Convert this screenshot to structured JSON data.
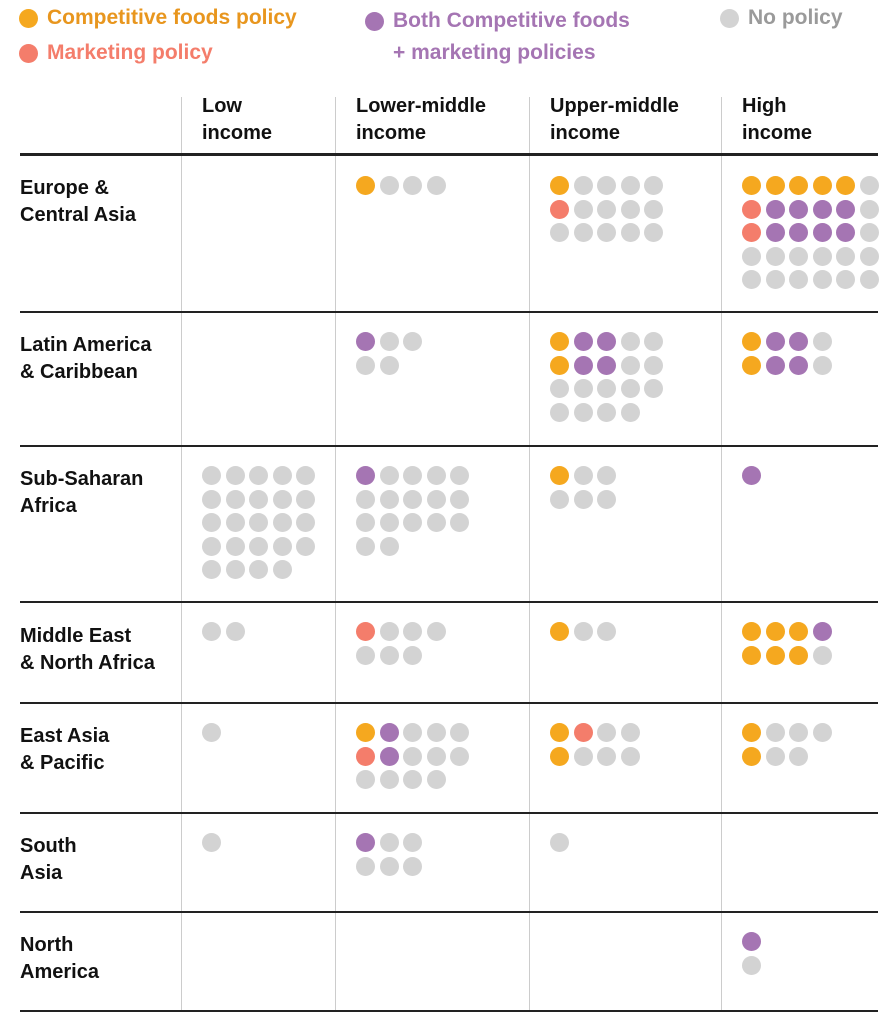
{
  "legend": {
    "competitive": {
      "label": "Competitive foods policy",
      "color": "#F5A81F",
      "text_color": "#E8961E"
    },
    "marketing": {
      "label": "Marketing policy",
      "color": "#F47D6B",
      "text_color": "#F47D6B"
    },
    "both": {
      "label": "Both Competitive foods\n+ marketing policies",
      "color": "#A575B3",
      "text_color": "#A575B3"
    },
    "none": {
      "label": "No policy",
      "color": "#D3D3D3",
      "text_color": "#9A9A9A"
    }
  },
  "chart_data": {
    "type": "table",
    "encoding": {
      "C": "Competitive foods policy",
      "M": "Marketing policy",
      "B": "Both Competitive foods + marketing policies",
      "N": "No policy"
    },
    "columns": [
      "Low\nincome",
      "Lower-middle\nincome",
      "Upper-middle\nincome",
      "High\nincome"
    ],
    "rows": [
      {
        "label": "Europe &\nCentral Asia",
        "cells": [
          [],
          [
            "CNNN"
          ],
          [
            "CNNNN",
            "MNNNN",
            "NNNNN"
          ],
          [
            "CCCCCN",
            "MBBBBN",
            "MBBBBN",
            "NNNNNN",
            "NNNNNN"
          ]
        ]
      },
      {
        "label": "Latin America\n& Caribbean",
        "cells": [
          [],
          [
            "BNN",
            "NN"
          ],
          [
            "CBBNN",
            "CBBNN",
            "NNNNN",
            "NNNN"
          ],
          [
            "CBBN",
            "CBBN"
          ]
        ]
      },
      {
        "label": "Sub-Saharan\nAfrica",
        "cells": [
          [
            "NNNNN",
            "NNNNN",
            "NNNNN",
            "NNNNN",
            "NNNN"
          ],
          [
            "BNNNN",
            "NNNNN",
            "NNNNN",
            "NN"
          ],
          [
            "CNN",
            "NNN"
          ],
          [
            "B"
          ]
        ]
      },
      {
        "label": "Middle East\n& North Africa",
        "cells": [
          [
            "NN"
          ],
          [
            "MNNN",
            "NNN"
          ],
          [
            "CNN"
          ],
          [
            "CCCB",
            "CCCN"
          ]
        ]
      },
      {
        "label": "East Asia\n& Pacific",
        "cells": [
          [
            "N"
          ],
          [
            "CBNNN",
            "MBNNN",
            "NNNN"
          ],
          [
            "CMNN",
            "CNNN"
          ],
          [
            "CNNN",
            "CNN"
          ]
        ]
      },
      {
        "label": "South\nAsia",
        "cells": [
          [
            "N"
          ],
          [
            "BNN",
            "NNN"
          ],
          [
            "N"
          ],
          []
        ]
      },
      {
        "label": "North\nAmerica",
        "cells": [
          [],
          [],
          [],
          [
            "B",
            "N"
          ]
        ]
      }
    ]
  }
}
